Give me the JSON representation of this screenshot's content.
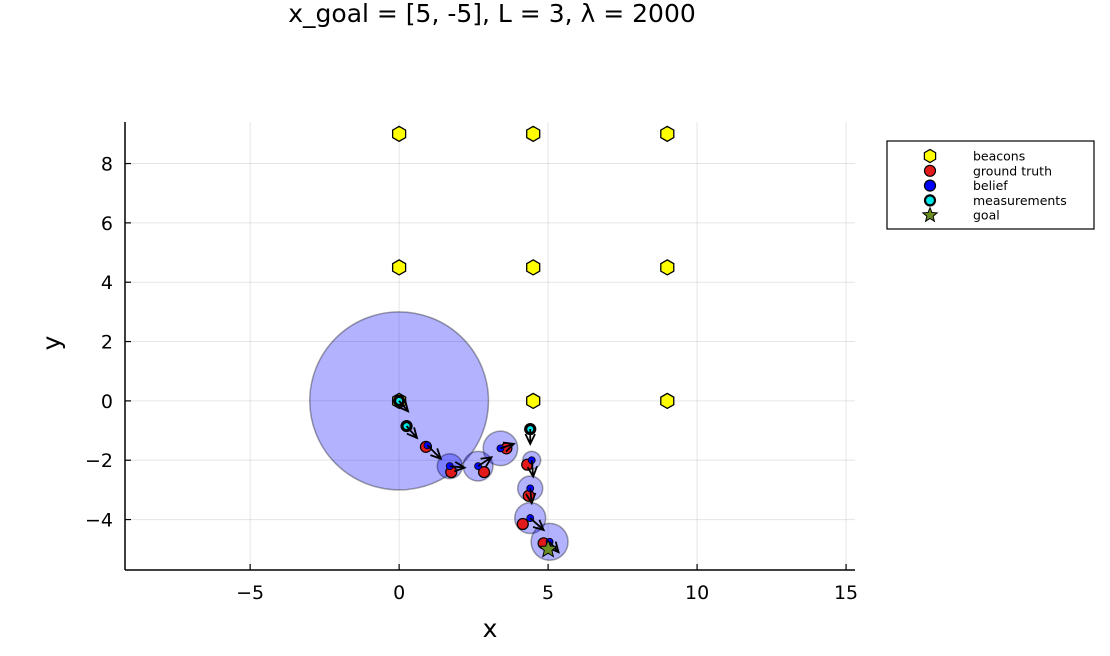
{
  "chart_data": {
    "type": "scatter",
    "title": "x_goal = [5, -5], L = 3, λ = 2000",
    "xlabel": "x",
    "ylabel": "y",
    "xlim": [
      -9.2,
      15.3
    ],
    "ylim": [
      -5.7,
      9.4
    ],
    "xticks": [
      -5,
      0,
      5,
      10,
      15
    ],
    "yticks": [
      -4,
      -2,
      0,
      2,
      4,
      6,
      8
    ],
    "xtick_labels": [
      "−5",
      "0",
      "5",
      "10",
      "15"
    ],
    "ytick_labels": [
      "−4",
      "−2",
      "0",
      "2",
      "4",
      "6",
      "8"
    ],
    "grid": true,
    "legend_position": "outer-top-right",
    "colors": {
      "beacons": "#ffff00",
      "ground_truth": "#e31a1c",
      "belief": "#0000ff",
      "measurements": "#00e5e5",
      "goal": "#6b8e23",
      "uncertainty": "#0000ff",
      "heading": "#000000"
    },
    "legend": [
      {
        "label": "beacons",
        "marker": "hexagon",
        "color": "#ffff00"
      },
      {
        "label": "ground truth",
        "marker": "circle",
        "color": "#e31a1c"
      },
      {
        "label": "belief",
        "marker": "circle",
        "color": "#0000ff"
      },
      {
        "label": "measurements",
        "marker": "ring",
        "color": "#00e5e5"
      },
      {
        "label": "goal",
        "marker": "star",
        "color": "#6b8e23"
      }
    ],
    "beacons": [
      {
        "x": 0,
        "y": 0
      },
      {
        "x": 4.5,
        "y": 0
      },
      {
        "x": 9,
        "y": 0
      },
      {
        "x": 0,
        "y": 4.5
      },
      {
        "x": 4.5,
        "y": 4.5
      },
      {
        "x": 9,
        "y": 4.5
      },
      {
        "x": 0,
        "y": 9
      },
      {
        "x": 4.5,
        "y": 9
      },
      {
        "x": 9,
        "y": 9
      }
    ],
    "steps": [
      {
        "belief": [
          0,
          0
        ],
        "cov_radius": 3.0,
        "truth": [
          0,
          0
        ],
        "meas": [
          0,
          0
        ],
        "heading": [
          0.3,
          -0.35
        ]
      },
      {
        "belief": [
          0.25,
          -0.85
        ],
        "cov_radius": 0.0,
        "truth": [
          0.25,
          -0.85
        ],
        "meas": [
          0.25,
          -0.85
        ],
        "heading": [
          0.35,
          -0.4
        ]
      },
      {
        "belief": [
          0.95,
          -1.5
        ],
        "cov_radius": 0.0,
        "truth": [
          0.9,
          -1.55
        ],
        "meas": null,
        "heading": [
          0.45,
          -0.45
        ]
      },
      {
        "belief": [
          1.7,
          -2.2
        ],
        "cov_radius": 0.42,
        "truth": [
          1.75,
          -2.4
        ],
        "meas": null,
        "heading": [
          0.5,
          -0.05
        ]
      },
      {
        "belief": [
          2.65,
          -2.2
        ],
        "cov_radius": 0.5,
        "truth": [
          2.85,
          -2.4
        ],
        "meas": null,
        "heading": [
          0.45,
          0.3
        ]
      },
      {
        "belief": [
          3.4,
          -1.6
        ],
        "cov_radius": 0.58,
        "truth": [
          3.6,
          -1.6
        ],
        "meas": null,
        "heading": [
          0.45,
          0.15
        ]
      },
      {
        "belief": [
          4.4,
          -0.95
        ],
        "cov_radius": 0.0,
        "truth": [
          4.4,
          -0.95
        ],
        "meas": [
          4.4,
          -0.95
        ],
        "heading": [
          0.0,
          -0.5
        ]
      },
      {
        "belief": [
          4.45,
          -2.0
        ],
        "cov_radius": 0.3,
        "truth": [
          4.3,
          -2.15
        ],
        "meas": null,
        "heading": [
          0.05,
          -0.55
        ]
      },
      {
        "belief": [
          4.4,
          -2.95
        ],
        "cov_radius": 0.42,
        "truth": [
          4.35,
          -3.2
        ],
        "meas": null,
        "heading": [
          0.05,
          -0.5
        ]
      },
      {
        "belief": [
          4.4,
          -3.95
        ],
        "cov_radius": 0.52,
        "truth": [
          4.15,
          -4.15
        ],
        "meas": null,
        "heading": [
          0.45,
          -0.4
        ]
      },
      {
        "belief": [
          5.05,
          -4.75
        ],
        "cov_radius": 0.62,
        "truth": [
          4.85,
          -4.8
        ],
        "meas": null,
        "heading": [
          0.3,
          -0.35
        ]
      }
    ],
    "goal": [
      5,
      -5
    ]
  }
}
